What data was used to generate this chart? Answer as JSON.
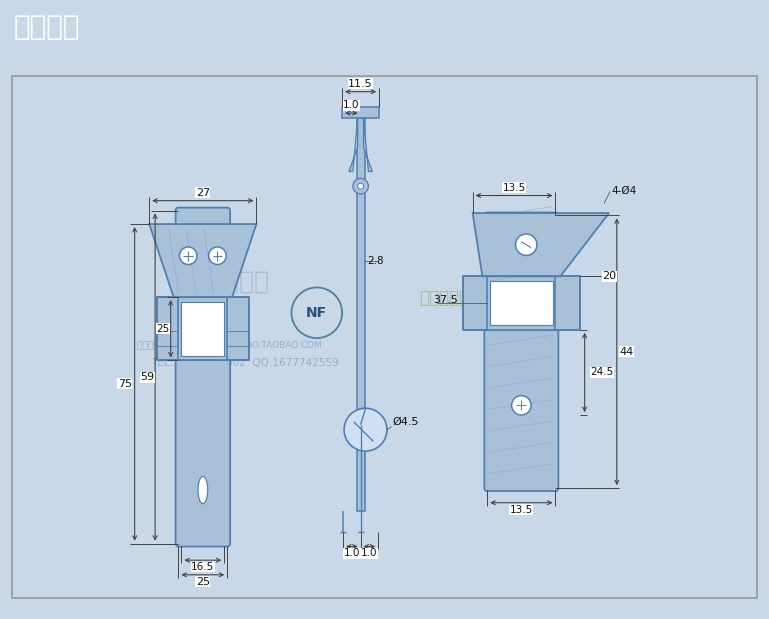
{
  "title": "产品尺寸",
  "title_bg_color": "#3578a0",
  "title_text_color": "#ffffff",
  "outer_bg_color": "#c8d8e8",
  "inner_bg_color": "#ffffff",
  "drawing_color": "#5080b0",
  "drawing_fill": "#a8c0d8",
  "dim_color": "#111111",
  "dim_line_color": "#444444",
  "watermark_color": "#5a7aaa",
  "dims_left": {
    "w27": "27",
    "w25": "25",
    "w16_5": "16.5",
    "h75": "75",
    "h59": "59",
    "h25": "25"
  },
  "dims_mid": {
    "w11_5": "11.5",
    "left_1_0": "1.0",
    "mid_2_8": "2.8",
    "dia_4_5": "Ø4.5",
    "bot_1_0l": "1.0",
    "bot_1_0r": "1.0"
  },
  "dims_right": {
    "top_13_5": "13.5",
    "label_4dia4": "4-Ø4",
    "h20": "20",
    "h37_5": "37.5",
    "h24_5": "24.5",
    "h44": "44",
    "bot_13_5": "13.5"
  }
}
